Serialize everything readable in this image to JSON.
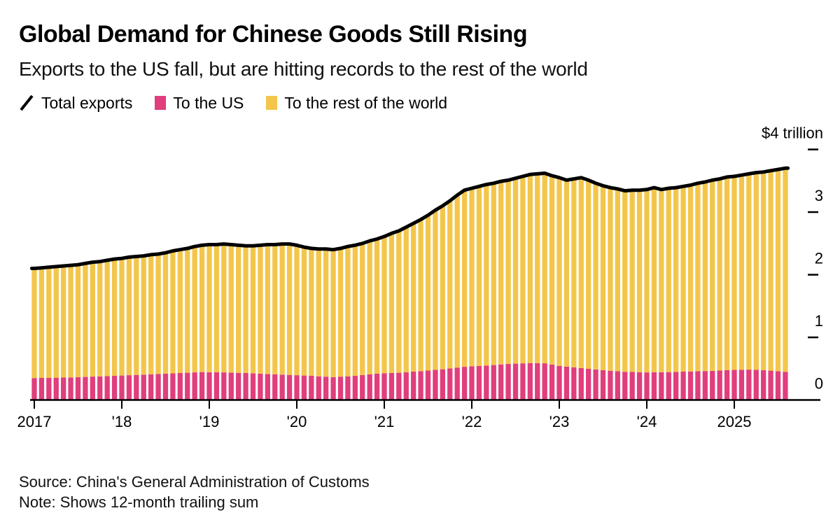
{
  "header": {
    "title": "Global Demand for Chinese Goods Still Rising",
    "subtitle": "Exports to the US fall, but are hitting records to the rest of the world"
  },
  "legend": {
    "items": [
      {
        "label": "Total exports",
        "marker": "line-slash",
        "color": "#000000"
      },
      {
        "label": "To the US",
        "marker": "square",
        "color": "#e03e7d"
      },
      {
        "label": "To the rest of the world",
        "marker": "square",
        "color": "#f3c64b"
      }
    ]
  },
  "footer": {
    "source": "Source: China's General Administration of Customs",
    "note": "Note: Shows 12-month trailing sum"
  },
  "colors": {
    "us_pink": "#e03e7d",
    "row_yellow": "#f3c64b",
    "line_black": "#000000",
    "axis_black": "#000000",
    "background": "#ffffff"
  },
  "chart_data": {
    "type": "bar",
    "subtype": "stacked-monthly-bars-with-total-line",
    "unit": "USD trillion, 12-month trailing sum",
    "start": {
      "year": 2017,
      "month": 1
    },
    "end": {
      "year": 2025,
      "month": 8
    },
    "y_axis": {
      "range": [
        0,
        4
      ],
      "ticks": [
        {
          "label": "$4 trillion",
          "value": 4
        },
        {
          "label": "3",
          "value": 3
        },
        {
          "label": "2",
          "value": 2
        },
        {
          "label": "1",
          "value": 1
        },
        {
          "label": "0",
          "value": 0
        }
      ],
      "side": "right"
    },
    "x_axis": {
      "ticks": [
        {
          "label": "2017",
          "year": 2017
        },
        {
          "label": "'18",
          "year": 2018
        },
        {
          "label": "'19",
          "year": 2019
        },
        {
          "label": "'20",
          "year": 2020
        },
        {
          "label": "'21",
          "year": 2021
        },
        {
          "label": "'22",
          "year": 2022
        },
        {
          "label": "'23",
          "year": 2023
        },
        {
          "label": "'24",
          "year": 2024
        },
        {
          "label": "2025",
          "year": 2025
        }
      ]
    },
    "series": [
      {
        "name": "Total exports",
        "role": "line",
        "color": "#000000",
        "values": [
          2.1,
          2.11,
          2.12,
          2.13,
          2.14,
          2.15,
          2.16,
          2.18,
          2.2,
          2.21,
          2.23,
          2.25,
          2.26,
          2.28,
          2.29,
          2.3,
          2.32,
          2.33,
          2.35,
          2.38,
          2.4,
          2.42,
          2.45,
          2.47,
          2.48,
          2.48,
          2.49,
          2.48,
          2.47,
          2.46,
          2.46,
          2.47,
          2.48,
          2.48,
          2.49,
          2.49,
          2.47,
          2.44,
          2.42,
          2.41,
          2.41,
          2.4,
          2.42,
          2.45,
          2.47,
          2.5,
          2.54,
          2.57,
          2.61,
          2.66,
          2.7,
          2.76,
          2.82,
          2.88,
          2.95,
          3.03,
          3.1,
          3.18,
          3.27,
          3.35,
          3.38,
          3.41,
          3.44,
          3.46,
          3.49,
          3.51,
          3.54,
          3.57,
          3.6,
          3.61,
          3.62,
          3.58,
          3.55,
          3.51,
          3.53,
          3.55,
          3.51,
          3.46,
          3.42,
          3.39,
          3.37,
          3.34,
          3.35,
          3.35,
          3.36,
          3.39,
          3.36,
          3.38,
          3.39,
          3.41,
          3.43,
          3.46,
          3.48,
          3.51,
          3.53,
          3.56,
          3.57,
          3.59,
          3.61,
          3.63,
          3.64,
          3.66,
          3.68,
          3.7
        ]
      },
      {
        "name": "To the US",
        "role": "bar-bottom",
        "color": "#e03e7d",
        "values": [
          0.35,
          0.352,
          0.354,
          0.356,
          0.358,
          0.36,
          0.364,
          0.368,
          0.373,
          0.377,
          0.381,
          0.385,
          0.39,
          0.395,
          0.4,
          0.405,
          0.41,
          0.415,
          0.42,
          0.425,
          0.43,
          0.435,
          0.44,
          0.445,
          0.443,
          0.442,
          0.44,
          0.437,
          0.433,
          0.43,
          0.425,
          0.42,
          0.415,
          0.41,
          0.405,
          0.4,
          0.395,
          0.39,
          0.385,
          0.378,
          0.372,
          0.365,
          0.372,
          0.378,
          0.385,
          0.397,
          0.408,
          0.42,
          0.425,
          0.43,
          0.435,
          0.443,
          0.452,
          0.46,
          0.47,
          0.48,
          0.49,
          0.503,
          0.517,
          0.53,
          0.537,
          0.543,
          0.55,
          0.558,
          0.567,
          0.575,
          0.58,
          0.585,
          0.59,
          0.588,
          0.585,
          0.565,
          0.545,
          0.533,
          0.522,
          0.51,
          0.498,
          0.487,
          0.475,
          0.467,
          0.458,
          0.45,
          0.447,
          0.443,
          0.44,
          0.442,
          0.443,
          0.445,
          0.448,
          0.452,
          0.455,
          0.458,
          0.462,
          0.465,
          0.47,
          0.475,
          0.48,
          0.483,
          0.485,
          0.48,
          0.475,
          0.468,
          0.46,
          0.45
        ]
      },
      {
        "name": "To the rest of the world",
        "role": "bar-top",
        "color": "#f3c64b",
        "values": [
          1.75,
          1.758,
          1.766,
          1.774,
          1.782,
          1.79,
          1.796,
          1.812,
          1.827,
          1.833,
          1.849,
          1.865,
          1.87,
          1.885,
          1.89,
          1.895,
          1.91,
          1.915,
          1.93,
          1.955,
          1.97,
          1.985,
          2.01,
          2.025,
          2.037,
          2.038,
          2.05,
          2.043,
          2.037,
          2.03,
          2.035,
          2.05,
          2.065,
          2.07,
          2.085,
          2.09,
          2.075,
          2.05,
          2.035,
          2.032,
          2.038,
          2.035,
          2.048,
          2.072,
          2.085,
          2.103,
          2.132,
          2.15,
          2.185,
          2.23,
          2.265,
          2.317,
          2.368,
          2.42,
          2.48,
          2.55,
          2.61,
          2.677,
          2.753,
          2.82,
          2.843,
          2.867,
          2.89,
          2.902,
          2.923,
          2.935,
          2.96,
          2.985,
          3.01,
          3.022,
          3.035,
          3.015,
          3.005,
          2.977,
          3.008,
          3.04,
          3.012,
          2.973,
          2.945,
          2.923,
          2.912,
          2.89,
          2.903,
          2.907,
          2.92,
          2.948,
          2.917,
          2.935,
          2.942,
          2.958,
          2.975,
          3.002,
          3.018,
          3.045,
          3.06,
          3.085,
          3.09,
          3.107,
          3.125,
          3.15,
          3.165,
          3.192,
          3.22,
          3.25
        ]
      }
    ],
    "grid": "right-side dash ticks only",
    "legend_position": "top-left under subtitle"
  }
}
